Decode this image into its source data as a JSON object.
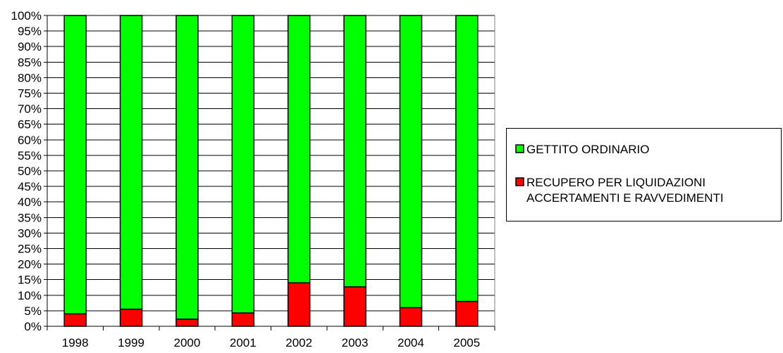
{
  "chart_data": {
    "type": "bar",
    "stacked": true,
    "normalized": true,
    "categories": [
      "1998",
      "1999",
      "2000",
      "2001",
      "2002",
      "2003",
      "2004",
      "2005"
    ],
    "series": [
      {
        "name": "RECUPERO PER LIQUIDAZIONI ACCERTAMENTI E RAVVEDIMENTI",
        "legend_lines": [
          "RECUPERO PER LIQUIDAZIONI",
          "ACCERTAMENTI E RAVVEDIMENTI"
        ],
        "color": "#ff0000",
        "values": [
          4.0,
          5.5,
          2.3,
          4.3,
          14.0,
          12.7,
          6.0,
          8.0
        ]
      },
      {
        "name": "GETTITO ORDINARIO",
        "legend_lines": [
          "GETTITO ORDINARIO"
        ],
        "color": "#00ff00",
        "values": [
          96.0,
          94.5,
          97.7,
          95.7,
          86.0,
          87.3,
          94.0,
          92.0
        ]
      }
    ],
    "y_ticks": [
      "0%",
      "5%",
      "10%",
      "15%",
      "20%",
      "25%",
      "30%",
      "35%",
      "40%",
      "45%",
      "50%",
      "55%",
      "60%",
      "65%",
      "70%",
      "75%",
      "80%",
      "85%",
      "90%",
      "95%",
      "100%"
    ],
    "ylim": [
      0,
      100
    ],
    "grid": true,
    "legend_position": "right",
    "title": "",
    "xlabel": "",
    "ylabel": ""
  }
}
